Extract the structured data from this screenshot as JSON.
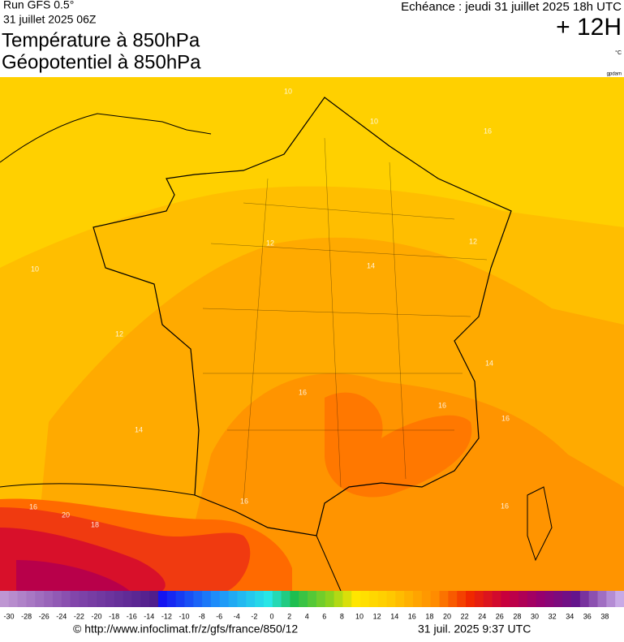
{
  "header": {
    "run": "Run GFS 0.5°",
    "run_date": "31 juillet 2025 06Z",
    "title_1": "Température à 850hPa",
    "title_2": "Géopotentiel à 850hPa",
    "valid": "Echéance : jeudi 31 juillet 2025 18h UTC",
    "lead": "+ 12H",
    "unit": "°C",
    "credit": "gpdam"
  },
  "map": {
    "contour_labels": [
      10,
      10,
      16,
      10,
      12,
      14,
      12,
      12,
      14,
      16,
      16,
      14,
      16,
      18,
      20,
      16,
      16,
      16
    ]
  },
  "colorbar": {
    "labels": [
      -30,
      -28,
      -26,
      -24,
      -22,
      -20,
      -18,
      -16,
      -14,
      -12,
      -10,
      -8,
      -6,
      -4,
      -2,
      0,
      2,
      4,
      6,
      8,
      10,
      12,
      14,
      16,
      18,
      20,
      22,
      24,
      26,
      28,
      30,
      32,
      34,
      36,
      38
    ]
  },
  "footer": {
    "source": "© http://www.infoclimat.fr/z/gfs/france/850/12",
    "timestamp": "31 juil. 2025  9:37 UTC"
  }
}
